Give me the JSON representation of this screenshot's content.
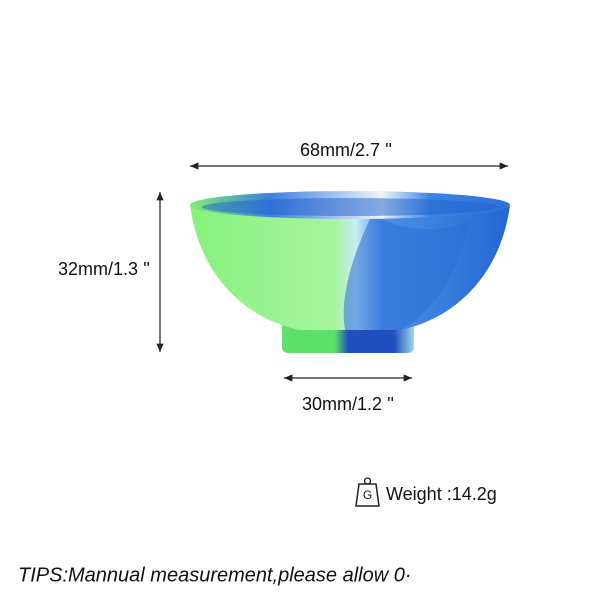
{
  "dimensions": {
    "width": "68mm/2.7 ''",
    "height": "32mm/1.3 ''",
    "base": "30mm/1.2 ''"
  },
  "weight": {
    "icon": "G",
    "label": "Weight :14.2g"
  },
  "tips": "TIPS:Mannual measurement,please allow 0·"
}
